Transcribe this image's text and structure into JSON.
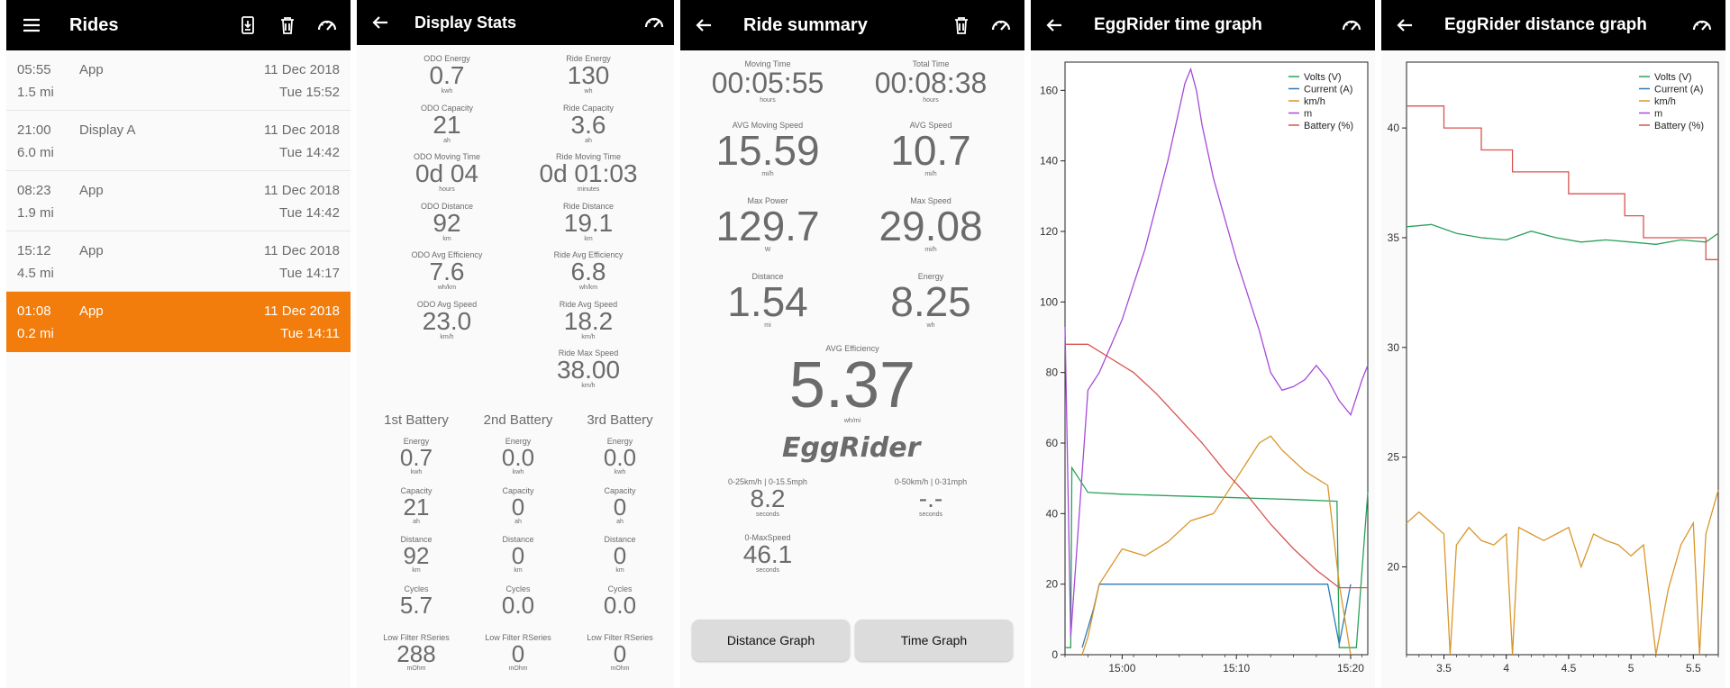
{
  "rides_screen": {
    "title": "Rides",
    "rides": [
      {
        "time": "05:55",
        "source": "App",
        "date": "11 Dec 2018",
        "distance": "1.5 mi",
        "day_time": "Tue 15:52",
        "selected": false
      },
      {
        "time": "21:00",
        "source": "Display A",
        "date": "11 Dec 2018",
        "distance": "6.0 mi",
        "day_time": "Tue 14:42",
        "selected": false
      },
      {
        "time": "08:23",
        "source": "App",
        "date": "11 Dec 2018",
        "distance": "1.9 mi",
        "day_time": "Tue 14:42",
        "selected": false
      },
      {
        "time": "15:12",
        "source": "App",
        "date": "11 Dec 2018",
        "distance": "4.5 mi",
        "day_time": "Tue 14:17",
        "selected": false
      },
      {
        "time": "01:08",
        "source": "App",
        "date": "11 Dec 2018",
        "distance": "0.2 mi",
        "day_time": "Tue 14:11",
        "selected": true
      }
    ],
    "accent_color": "#f27d0c"
  },
  "display_stats": {
    "title": "Display Stats",
    "odo": [
      {
        "label": "ODO Energy",
        "value": "0.7",
        "unit": "kwh"
      },
      {
        "label": "ODO Capacity",
        "value": "21",
        "unit": "ah"
      },
      {
        "label": "ODO Moving Time",
        "value": "0d 04",
        "unit": "hours"
      },
      {
        "label": "ODO Distance",
        "value": "92",
        "unit": "km"
      },
      {
        "label": "ODO Avg Efficiency",
        "value": "7.6",
        "unit": "wh/km"
      },
      {
        "label": "ODO Avg Speed",
        "value": "23.0",
        "unit": "km/h"
      }
    ],
    "ride": [
      {
        "label": "Ride Energy",
        "value": "130",
        "unit": "wh"
      },
      {
        "label": "Ride Capacity",
        "value": "3.6",
        "unit": "ah"
      },
      {
        "label": "Ride Moving Time",
        "value": "0d 01:03",
        "unit": "minutes"
      },
      {
        "label": "Ride Distance",
        "value": "19.1",
        "unit": "km"
      },
      {
        "label": "Ride Avg Efficiency",
        "value": "6.8",
        "unit": "wh/km"
      },
      {
        "label": "Ride Avg Speed",
        "value": "18.2",
        "unit": "km/h"
      },
      {
        "label": "Ride Max Speed",
        "value": "38.00",
        "unit": "km/h"
      }
    ],
    "battery_headers": [
      "1st Battery",
      "2nd Battery",
      "3rd Battery"
    ],
    "batteries": [
      [
        {
          "label": "Energy",
          "value": "0.7",
          "unit": "kwh"
        },
        {
          "label": "Capacity",
          "value": "21",
          "unit": "ah"
        },
        {
          "label": "Distance",
          "value": "92",
          "unit": "km"
        },
        {
          "label": "Cycles",
          "value": "5.7",
          "unit": ""
        },
        {
          "label": "Low Filter RSeries",
          "value": "288",
          "unit": "mOhm"
        }
      ],
      [
        {
          "label": "Energy",
          "value": "0.0",
          "unit": "kwh"
        },
        {
          "label": "Capacity",
          "value": "0",
          "unit": "ah"
        },
        {
          "label": "Distance",
          "value": "0",
          "unit": "km"
        },
        {
          "label": "Cycles",
          "value": "0.0",
          "unit": ""
        },
        {
          "label": "Low Filter RSeries",
          "value": "0",
          "unit": "mOhm"
        }
      ],
      [
        {
          "label": "Energy",
          "value": "0.0",
          "unit": "kwh"
        },
        {
          "label": "Capacity",
          "value": "0",
          "unit": "ah"
        },
        {
          "label": "Distance",
          "value": "0",
          "unit": "km"
        },
        {
          "label": "Cycles",
          "value": "0.0",
          "unit": ""
        },
        {
          "label": "Low Filter RSeries",
          "value": "0",
          "unit": "mOhm"
        }
      ]
    ]
  },
  "ride_summary": {
    "title": "Ride summary",
    "stats": [
      {
        "label": "Moving Time",
        "value": "00:05:55",
        "unit": "hours"
      },
      {
        "label": "Total Time",
        "value": "00:08:38",
        "unit": "hours"
      },
      {
        "label": "AVG Moving Speed",
        "value": "15.59",
        "unit": "mi/h"
      },
      {
        "label": "AVG Speed",
        "value": "10.7",
        "unit": "mi/h"
      },
      {
        "label": "Max Power",
        "value": "129.7",
        "unit": "W"
      },
      {
        "label": "Max Speed",
        "value": "29.08",
        "unit": "mi/h"
      },
      {
        "label": "Distance",
        "value": "1.54",
        "unit": "mi"
      },
      {
        "label": "Energy",
        "value": "8.25",
        "unit": "wh"
      }
    ],
    "efficiency": {
      "label": "AVG Efficiency",
      "value": "5.37",
      "unit": "wh/mi"
    },
    "logo_text": "EggRider",
    "accel": [
      {
        "label": "0-25km/h | 0-15.5mph",
        "value": "8.2",
        "unit": "seconds"
      },
      {
        "label": "0-50km/h | 0-31mph",
        "value": "-.-",
        "unit": "seconds"
      },
      {
        "label": "0-MaxSpeed",
        "value": "46.1",
        "unit": "seconds"
      }
    ],
    "distance_graph_button": "Distance Graph",
    "time_graph_button": "Time Graph"
  },
  "time_graph": {
    "title": "EggRider time graph"
  },
  "distance_graph": {
    "title": "EggRider distance graph"
  },
  "chart_data": [
    {
      "type": "line",
      "title": "EggRider time graph",
      "xlabel": "",
      "ylabel": "",
      "x_ticks": [
        "15:00",
        "15:10",
        "15:20"
      ],
      "x_range_minutes": [
        -5,
        21.5
      ],
      "ylim": [
        0,
        168
      ],
      "y_ticks": [
        0,
        20,
        40,
        60,
        80,
        100,
        120,
        140,
        160
      ],
      "legend_position": "top-right",
      "series": [
        {
          "name": "Volts (V)",
          "color": "#2aa05a",
          "x": [
            -5,
            -4.5,
            -4.4,
            -3,
            0,
            5,
            10,
            15,
            18.8,
            19,
            20.5,
            21.5
          ],
          "y": [
            2,
            2,
            53,
            46,
            45.5,
            45,
            44.5,
            44,
            43.5,
            2,
            2,
            46
          ]
        },
        {
          "name": "Current (A)",
          "color": "#2e7ab8",
          "x": [
            -3.5,
            -2.5,
            -2,
            0,
            5,
            10,
            15,
            18,
            19,
            20
          ],
          "y": [
            2,
            13,
            20,
            20,
            20,
            20,
            20,
            20,
            3,
            20
          ]
        },
        {
          "name": "km/h",
          "color": "#d8962a",
          "x": [
            -3.5,
            -3,
            -2,
            0,
            2,
            4,
            6,
            8,
            9,
            10,
            11,
            12,
            13,
            14,
            15,
            16,
            17,
            18,
            19,
            20
          ],
          "y": [
            0,
            5,
            20,
            30,
            28,
            32,
            38,
            40,
            45,
            50,
            55,
            60,
            62,
            58,
            55,
            52,
            50,
            48,
            20,
            0
          ]
        },
        {
          "name": "m",
          "color": "#a64ad8",
          "x": [
            -5,
            -4.5,
            -3,
            -2,
            0,
            2,
            4,
            5.5,
            6,
            6.5,
            7,
            8,
            10,
            12,
            13,
            14,
            15,
            16,
            17,
            18,
            19,
            20,
            21,
            21.5
          ],
          "y": [
            93,
            5,
            75,
            80,
            95,
            115,
            140,
            162,
            166,
            160,
            150,
            135,
            112,
            92,
            80,
            75,
            76,
            78,
            82,
            78,
            72,
            68,
            78,
            82
          ]
        },
        {
          "name": "Battery (%)",
          "color": "#d9534f",
          "x": [
            -5,
            -3,
            -1,
            1,
            3,
            5,
            7,
            9,
            11,
            13,
            15,
            17,
            19,
            21.5
          ],
          "y": [
            88,
            88,
            84,
            80,
            74,
            67,
            60,
            52,
            45,
            37,
            30,
            24,
            19,
            19
          ]
        }
      ]
    },
    {
      "type": "line",
      "title": "EggRider distance graph",
      "xlabel": "",
      "ylabel": "",
      "x_ticks": [
        "3.5",
        "4",
        "4.5",
        "5",
        "5.5"
      ],
      "xlim": [
        3.2,
        5.7
      ],
      "ylim": [
        16,
        43
      ],
      "y_ticks": [
        20,
        25,
        30,
        35,
        40
      ],
      "legend_position": "top-right",
      "series": [
        {
          "name": "Volts (V)",
          "color": "#2aa05a",
          "x": [
            3.2,
            3.4,
            3.6,
            3.8,
            4.0,
            4.2,
            4.4,
            4.6,
            4.8,
            5.0,
            5.2,
            5.4,
            5.6,
            5.7
          ],
          "y": [
            35.5,
            35.6,
            35.2,
            35.0,
            34.9,
            35.3,
            35.0,
            34.8,
            34.9,
            34.8,
            34.7,
            34.9,
            34.8,
            35.2
          ]
        },
        {
          "name": "Current (A)",
          "color": "#2e7ab8",
          "x": [],
          "y": []
        },
        {
          "name": "km/h",
          "color": "#d8962a",
          "x": [
            3.2,
            3.3,
            3.4,
            3.5,
            3.55,
            3.6,
            3.7,
            3.8,
            3.9,
            4.0,
            4.05,
            4.1,
            4.2,
            4.3,
            4.4,
            4.5,
            4.6,
            4.7,
            4.8,
            4.9,
            5.0,
            5.1,
            5.2,
            5.3,
            5.4,
            5.5,
            5.55,
            5.6,
            5.7
          ],
          "y": [
            22,
            22.5,
            22,
            21.5,
            16,
            21,
            21.8,
            21.2,
            21,
            21.5,
            16,
            21.8,
            21.5,
            21.2,
            21.5,
            21.8,
            20,
            21.5,
            21.2,
            21,
            20.5,
            21,
            16,
            19,
            21,
            22,
            16,
            21.5,
            23.5
          ]
        },
        {
          "name": "m",
          "color": "#a64ad8",
          "x": [],
          "y": []
        },
        {
          "name": "Battery (%)",
          "color": "#d9534f",
          "x": [
            3.2,
            3.5,
            3.5,
            3.8,
            3.8,
            4.05,
            4.05,
            4.5,
            4.5,
            4.95,
            4.95,
            5.1,
            5.1,
            5.6,
            5.6,
            5.7
          ],
          "y": [
            41,
            41,
            40,
            40,
            39,
            39,
            38,
            38,
            37,
            37,
            36,
            36,
            35,
            35,
            34,
            34
          ]
        }
      ]
    }
  ]
}
